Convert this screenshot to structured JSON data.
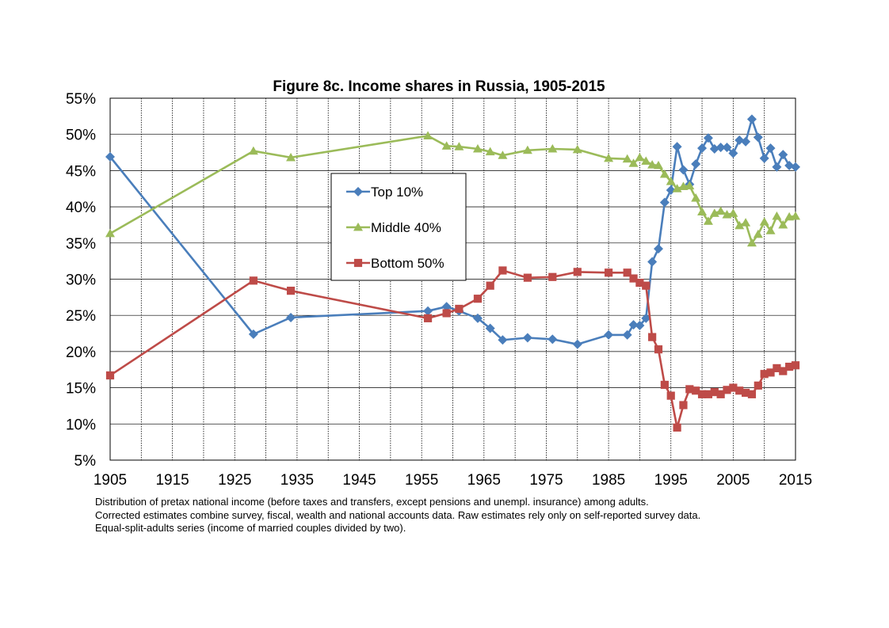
{
  "chart_data": {
    "type": "line",
    "title": "Figure 8c. Income shares in Russia, 1905-2015",
    "xlim": [
      1905,
      2015
    ],
    "ylim": [
      5,
      55
    ],
    "x_ticks": [
      "1905",
      "1915",
      "1925",
      "1935",
      "1945",
      "1955",
      "1965",
      "1975",
      "1985",
      "1995",
      "2005",
      "2015"
    ],
    "y_ticks": [
      "5%",
      "10%",
      "15%",
      "20%",
      "25%",
      "30%",
      "35%",
      "40%",
      "45%",
      "50%",
      "55%"
    ],
    "grid": true,
    "legend_position": "center-left",
    "series": [
      {
        "name": "Top 10%",
        "color": "#4a7ebb",
        "marker": "diamond",
        "x": [
          1905,
          1928,
          1934,
          1956,
          1959,
          1961,
          1964,
          1966,
          1968,
          1972,
          1976,
          1980,
          1985,
          1988,
          1989,
          1990,
          1991,
          1992,
          1993,
          1994,
          1995,
          1996,
          1997,
          1998,
          1999,
          2000,
          2001,
          2002,
          2003,
          2004,
          2005,
          2006,
          2007,
          2008,
          2009,
          2010,
          2011,
          2012,
          2013,
          2014,
          2015
        ],
        "values": [
          46.9,
          22.4,
          24.7,
          25.6,
          26.2,
          25.6,
          24.6,
          23.2,
          21.6,
          21.9,
          21.7,
          21.0,
          22.3,
          22.3,
          23.7,
          23.6,
          24.6,
          32.4,
          34.2,
          40.6,
          42.3,
          48.3,
          45.1,
          43.1,
          45.9,
          48.1,
          49.5,
          48.0,
          48.2,
          48.2,
          47.4,
          49.2,
          49.0,
          52.1,
          49.6,
          46.7,
          48.1,
          45.5,
          47.2,
          45.7,
          45.5
        ]
      },
      {
        "name": "Middle 40%",
        "color": "#9bbb59",
        "marker": "triangle",
        "x": [
          1905,
          1928,
          1934,
          1956,
          1959,
          1961,
          1964,
          1966,
          1968,
          1972,
          1976,
          1980,
          1985,
          1988,
          1989,
          1990,
          1991,
          1992,
          1993,
          1994,
          1995,
          1996,
          1997,
          1998,
          1999,
          2000,
          2001,
          2002,
          2003,
          2004,
          2005,
          2006,
          2007,
          2008,
          2009,
          2010,
          2011,
          2012,
          2013,
          2014,
          2015
        ],
        "values": [
          36.3,
          47.7,
          46.8,
          49.8,
          48.4,
          48.3,
          48.0,
          47.6,
          47.1,
          47.8,
          48.0,
          47.9,
          46.7,
          46.6,
          46.0,
          46.8,
          46.3,
          45.8,
          45.7,
          44.5,
          43.5,
          42.5,
          42.8,
          42.9,
          41.2,
          39.3,
          38.0,
          39.1,
          39.4,
          38.9,
          39.1,
          37.4,
          37.8,
          35.0,
          36.2,
          37.9,
          36.7,
          38.7,
          37.5,
          38.6,
          38.7
        ]
      },
      {
        "name": "Bottom 50%",
        "color": "#be4b48",
        "marker": "square",
        "x": [
          1905,
          1928,
          1934,
          1956,
          1959,
          1961,
          1964,
          1966,
          1968,
          1972,
          1976,
          1980,
          1985,
          1988,
          1989,
          1990,
          1991,
          1992,
          1993,
          1994,
          1995,
          1996,
          1997,
          1998,
          1999,
          2000,
          2001,
          2002,
          2003,
          2004,
          2005,
          2006,
          2007,
          2008,
          2009,
          2010,
          2011,
          2012,
          2013,
          2014,
          2015
        ],
        "values": [
          16.7,
          29.8,
          28.4,
          24.6,
          25.3,
          25.9,
          27.3,
          29.1,
          31.2,
          30.2,
          30.3,
          31.0,
          30.9,
          30.9,
          30.1,
          29.5,
          29.1,
          22.0,
          20.3,
          15.4,
          13.9,
          9.5,
          12.6,
          14.8,
          14.6,
          14.1,
          14.1,
          14.4,
          14.1,
          14.7,
          15.0,
          14.6,
          14.3,
          14.1,
          15.3,
          16.9,
          17.1,
          17.7,
          17.3,
          17.9,
          18.1
        ]
      }
    ]
  },
  "notes": [
    "Distribution of pretax national income (before taxes and transfers, except pensions and unempl. insurance) among adults.",
    "Corrected estimates combine survey, fiscal, wealth and national accounts data. Raw estimates rely only on self-reported survey data.",
    "Equal-split-adults series (income of married couples divided by two)."
  ]
}
